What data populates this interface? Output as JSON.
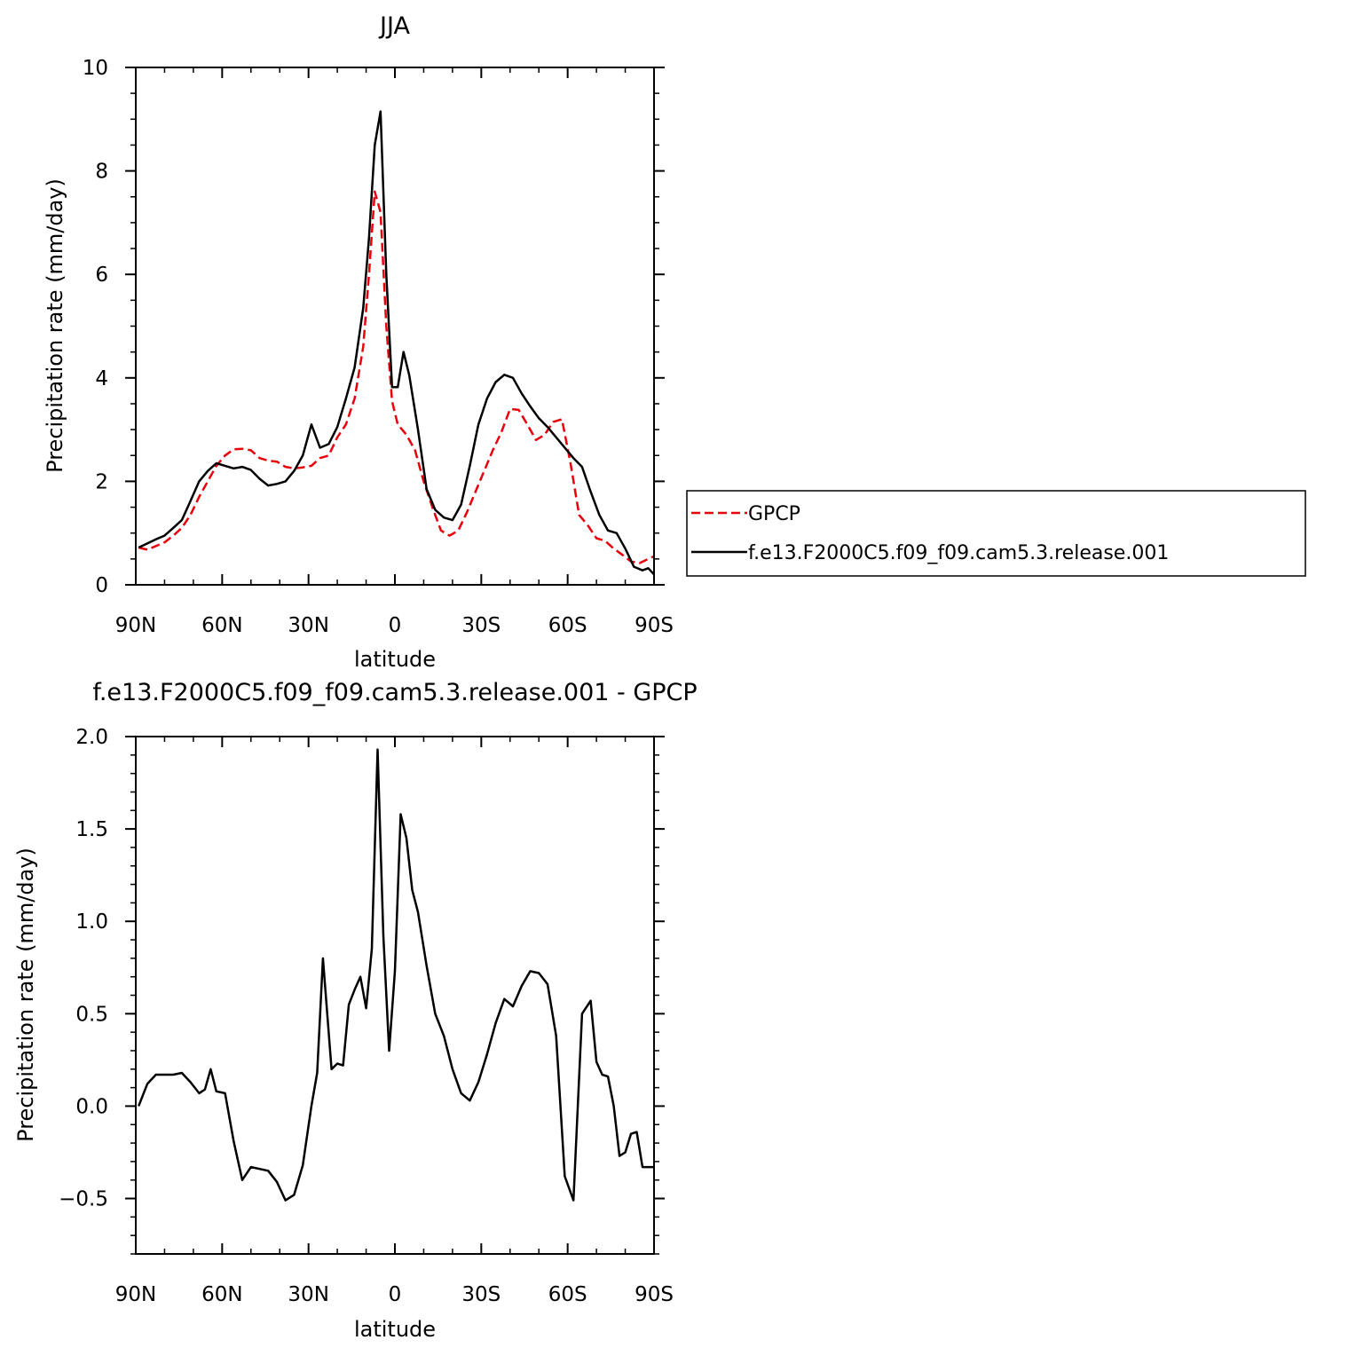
{
  "chart_data": [
    {
      "type": "line",
      "title": "JJA",
      "xlabel": "latitude",
      "ylabel": "Precipitation rate (mm/day)",
      "xlim": [
        90,
        -90
      ],
      "ylim": [
        0,
        10
      ],
      "x_ticks": [
        {
          "value": 90,
          "label": "90N"
        },
        {
          "value": 60,
          "label": "60N"
        },
        {
          "value": 30,
          "label": "30N"
        },
        {
          "value": 0,
          "label": "0"
        },
        {
          "value": -30,
          "label": "30S"
        },
        {
          "value": -60,
          "label": "60S"
        },
        {
          "value": -90,
          "label": "90S"
        }
      ],
      "y_ticks": [
        {
          "value": 0,
          "label": "0"
        },
        {
          "value": 2,
          "label": "2"
        },
        {
          "value": 4,
          "label": "4"
        },
        {
          "value": 6,
          "label": "6"
        },
        {
          "value": 8,
          "label": "8"
        },
        {
          "value": 10,
          "label": "10"
        }
      ],
      "legend_position": "right",
      "series": [
        {
          "name": "GPCP",
          "color": "#e8000b",
          "dash": "dashed",
          "x": [
            89,
            86,
            83,
            80,
            77,
            74,
            71,
            68,
            65,
            62,
            59,
            56,
            53,
            50,
            47,
            44,
            41,
            38,
            35,
            32,
            29,
            26,
            23,
            20,
            17,
            14,
            11,
            9,
            7,
            5,
            3,
            1,
            -1,
            -4,
            -7,
            -10,
            -13,
            -16,
            -19,
            -22,
            -25,
            -28,
            -31,
            -34,
            -37,
            -40,
            -43,
            -46,
            -49,
            -52,
            -55,
            -58,
            -61,
            -64,
            -67,
            -70,
            -73,
            -76,
            -79,
            -82,
            -85,
            -88,
            -90
          ],
          "y": [
            0.72,
            0.68,
            0.75,
            0.82,
            0.95,
            1.1,
            1.35,
            1.7,
            2.0,
            2.3,
            2.5,
            2.62,
            2.63,
            2.6,
            2.45,
            2.4,
            2.38,
            2.28,
            2.25,
            2.27,
            2.3,
            2.45,
            2.5,
            2.85,
            3.1,
            3.6,
            4.6,
            6.0,
            7.6,
            7.2,
            5.0,
            3.55,
            3.1,
            2.9,
            2.6,
            2.0,
            1.5,
            1.05,
            0.95,
            1.05,
            1.4,
            1.8,
            2.2,
            2.6,
            2.95,
            3.4,
            3.38,
            3.1,
            2.8,
            2.9,
            3.15,
            3.2,
            2.35,
            1.35,
            1.15,
            0.9,
            0.85,
            0.7,
            0.58,
            0.45,
            0.42,
            0.5,
            0.55
          ]
        },
        {
          "name": "f.e13.F2000C5.f09_f09.cam5.3.release.001",
          "color": "#000000",
          "dash": "solid",
          "x": [
            89,
            86,
            83,
            80,
            77,
            74,
            71,
            68,
            65,
            62,
            59,
            56,
            53,
            50,
            47,
            44,
            41,
            38,
            35,
            32,
            29,
            26,
            23,
            20,
            17,
            14,
            11,
            9,
            7,
            5,
            3,
            1,
            -1,
            -3,
            -5,
            -8,
            -11,
            -14,
            -17,
            -20,
            -23,
            -26,
            -29,
            -32,
            -35,
            -38,
            -41,
            -44,
            -47,
            -50,
            -53,
            -56,
            -59,
            -62,
            -65,
            -68,
            -71,
            -74,
            -77,
            -80,
            -83,
            -86,
            -88,
            -90
          ],
          "y": [
            0.72,
            0.8,
            0.88,
            0.95,
            1.1,
            1.25,
            1.62,
            2.0,
            2.2,
            2.35,
            2.3,
            2.25,
            2.28,
            2.22,
            2.05,
            1.92,
            1.95,
            2.0,
            2.2,
            2.5,
            3.1,
            2.65,
            2.72,
            3.05,
            3.6,
            4.2,
            5.35,
            6.7,
            8.5,
            9.15,
            6.0,
            3.82,
            3.82,
            4.5,
            4.05,
            3.0,
            1.85,
            1.45,
            1.3,
            1.25,
            1.55,
            2.3,
            3.1,
            3.6,
            3.92,
            4.06,
            4.0,
            3.7,
            3.45,
            3.22,
            3.05,
            2.85,
            2.65,
            2.45,
            2.28,
            1.8,
            1.35,
            1.05,
            1.0,
            0.7,
            0.35,
            0.28,
            0.32,
            0.2
          ]
        }
      ]
    },
    {
      "type": "line",
      "title": "f.e13.F2000C5.f09_f09.cam5.3.release.001 - GPCP",
      "xlabel": "latitude",
      "ylabel": "Precipitation rate (mm/day)",
      "xlim": [
        90,
        -90
      ],
      "ylim": [
        -0.8,
        2.0
      ],
      "x_ticks": [
        {
          "value": 90,
          "label": "90N"
        },
        {
          "value": 60,
          "label": "60N"
        },
        {
          "value": 30,
          "label": "30N"
        },
        {
          "value": 0,
          "label": "0"
        },
        {
          "value": -30,
          "label": "30S"
        },
        {
          "value": -60,
          "label": "60S"
        },
        {
          "value": -90,
          "label": "90S"
        }
      ],
      "y_ticks": [
        {
          "value": -0.5,
          "label": "−0.5"
        },
        {
          "value": 0.0,
          "label": "0.0"
        },
        {
          "value": 0.5,
          "label": "0.5"
        },
        {
          "value": 1.0,
          "label": "1.0"
        },
        {
          "value": 1.5,
          "label": "1.5"
        },
        {
          "value": 2.0,
          "label": "2.0"
        }
      ],
      "series": [
        {
          "color": "#000000",
          "dash": "solid",
          "x": [
            89,
            86,
            83,
            80,
            77,
            74,
            71,
            68,
            66,
            64,
            62,
            59,
            56,
            53,
            50,
            47,
            44,
            41,
            38,
            35,
            32,
            29,
            27,
            25,
            22,
            20,
            18,
            16,
            14,
            12,
            10,
            8,
            6,
            4,
            2,
            0,
            -2,
            -4,
            -6,
            -8,
            -11,
            -14,
            -17,
            -20,
            -23,
            -26,
            -29,
            -32,
            -35,
            -38,
            -41,
            -44,
            -47,
            -50,
            -53,
            -56,
            -59,
            -62,
            -65,
            -68,
            -70,
            -72,
            -74,
            -76,
            -78,
            -80,
            -82,
            -84,
            -86,
            -88,
            -90
          ],
          "y": [
            0.0,
            0.12,
            0.17,
            0.17,
            0.17,
            0.18,
            0.13,
            0.07,
            0.09,
            0.2,
            0.08,
            0.07,
            -0.19,
            -0.4,
            -0.33,
            -0.34,
            -0.35,
            -0.41,
            -0.51,
            -0.48,
            -0.32,
            0.0,
            0.18,
            0.8,
            0.2,
            0.23,
            0.22,
            0.55,
            0.63,
            0.7,
            0.53,
            0.85,
            1.93,
            0.92,
            0.3,
            0.73,
            1.58,
            1.45,
            1.17,
            1.05,
            0.76,
            0.5,
            0.38,
            0.2,
            0.07,
            0.03,
            0.13,
            0.28,
            0.45,
            0.58,
            0.54,
            0.65,
            0.73,
            0.72,
            0.66,
            0.38,
            -0.38,
            -0.51,
            0.5,
            0.57,
            0.24,
            0.17,
            0.16,
            0.0,
            -0.27,
            -0.25,
            -0.15,
            -0.14,
            -0.33,
            -0.33,
            -0.33
          ]
        }
      ]
    }
  ]
}
